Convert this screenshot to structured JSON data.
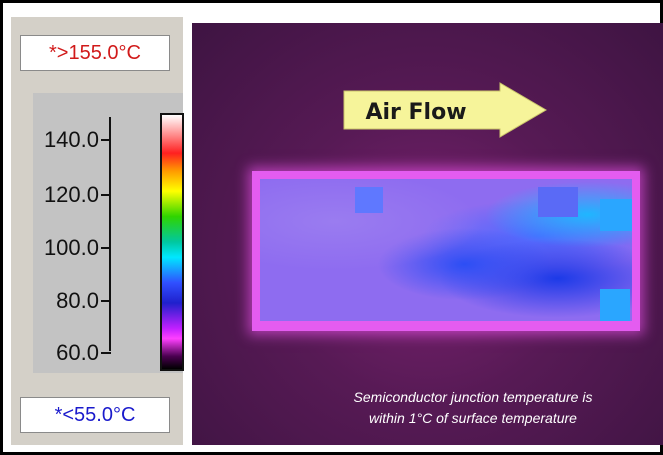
{
  "readouts": {
    "max": "*>155.0°C",
    "min": "*<55.0°C"
  },
  "scale": {
    "ticks": [
      "140.0",
      "120.0",
      "100.0",
      "80.0",
      "60.0"
    ]
  },
  "image": {
    "arrow_label": "Air Flow",
    "caption_line1": "Semiconductor junction temperature is",
    "caption_line2": "within 1°C of surface temperature"
  },
  "colors": {
    "max_text": "#d11a1a",
    "min_text": "#1a1acc",
    "arrow_fill": "#f6f49a"
  }
}
